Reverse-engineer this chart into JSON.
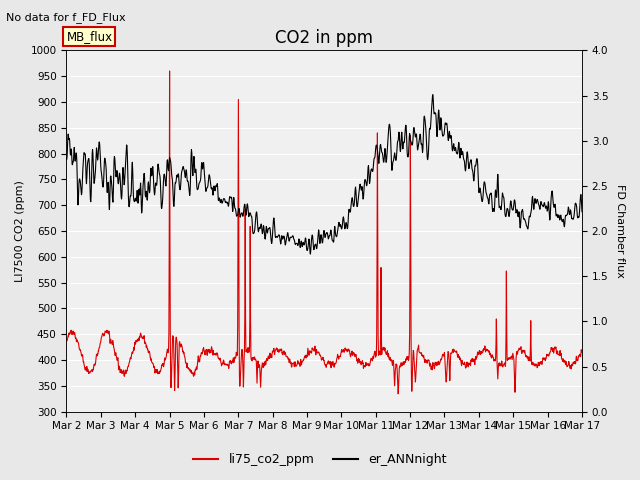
{
  "title": "CO2 in ppm",
  "top_left_note": "No data for f_FD_Flux",
  "ylabel_left": "LI7500 CO2 (ppm)",
  "ylabel_right": "FD Chamber flux",
  "ylim_left": [
    300,
    1000
  ],
  "ylim_right": [
    0.0,
    4.0
  ],
  "yticks_left": [
    300,
    350,
    400,
    450,
    500,
    550,
    600,
    650,
    700,
    750,
    800,
    850,
    900,
    950,
    1000
  ],
  "yticks_right": [
    0.0,
    0.5,
    1.0,
    1.5,
    2.0,
    2.5,
    3.0,
    3.5,
    4.0
  ],
  "xticklabels": [
    "Mar 2",
    "Mar 3",
    "Mar 4",
    "Mar 5",
    "Mar 6",
    "Mar 7",
    "Mar 8",
    "Mar 9",
    "Mar 10",
    "Mar 11",
    "Mar 12",
    "Mar 13",
    "Mar 14",
    "Mar 15",
    "Mar 16",
    "Mar 17"
  ],
  "mb_flux_box_color": "#ffffcc",
  "mb_flux_box_edge": "#cc0000",
  "mb_flux_text": "MB_flux",
  "legend_entries": [
    "li75_co2_ppm",
    "er_ANNnight"
  ],
  "line_color_red": "#dd0000",
  "line_color_black": "#000000",
  "bg_color": "#e8e8e8",
  "plot_bg_color": "#f0f0f0",
  "grid_color": "#ffffff",
  "title_fontsize": 12,
  "note_fontsize": 8,
  "label_fontsize": 8,
  "tick_fontsize": 7.5
}
